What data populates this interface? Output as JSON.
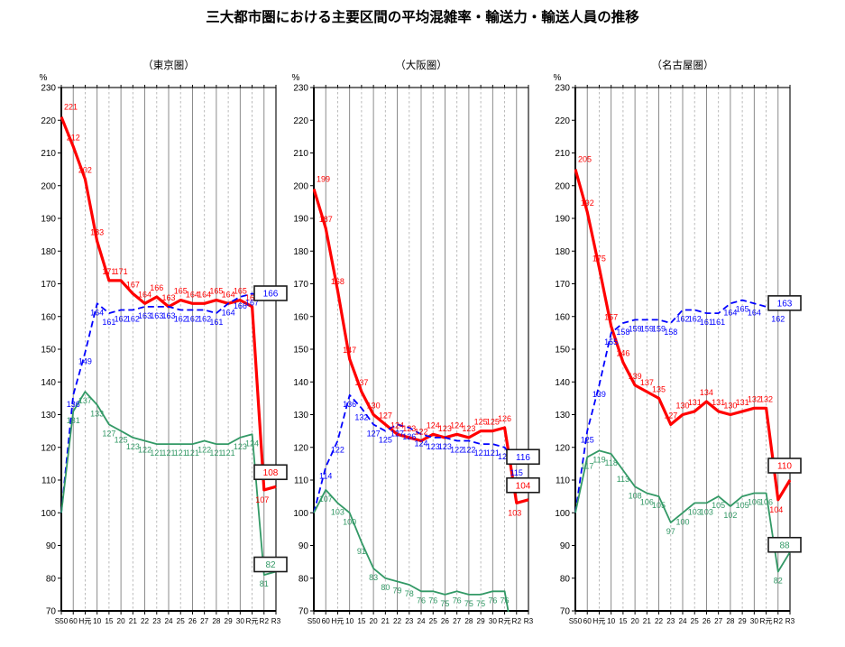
{
  "title": "三大都市圏における主要区間の平均混雑率・輸送力・輸送人員の推移",
  "chart_data": {
    "type": "line",
    "title": "三大都市圏における主要区間の平均混雑率・輸送力・輸送人員の推移",
    "y_axis": {
      "unit": "%",
      "min": 70,
      "max": 230,
      "step": 10
    },
    "x_labels": [
      "S50",
      "60",
      "H元",
      "10",
      "15",
      "20",
      "21",
      "22",
      "23",
      "24",
      "25",
      "26",
      "27",
      "28",
      "29",
      "30",
      "R元",
      "R2",
      "R3"
    ],
    "legend_position": "none",
    "grid": "vertical-only",
    "panels": [
      {
        "id": "tokyo",
        "title": "（東京圏）",
        "series": [
          {
            "id": "congestion-rate",
            "type": "solid",
            "color": "#ff0000",
            "line_width": 3.2,
            "boxed_final": true,
            "values": [
              221,
              212,
              202,
              183,
              171,
              171,
              167,
              164,
              166,
              163,
              165,
              164,
              164,
              165,
              164,
              165,
              163,
              107,
              108
            ],
            "labels": [
              "221",
              "212",
              "202",
              "183",
              "171",
              "171",
              "167",
              "164",
              "166",
              "163",
              "165",
              "164",
              "164",
              "165",
              "164",
              "165",
              "163",
              "107",
              "108"
            ]
          },
          {
            "id": "transport-capacity",
            "type": "dashed",
            "color": "#0000ff",
            "line_width": 1.8,
            "boxed_final": true,
            "values": [
              100,
              136,
              149,
              164,
              161,
              162,
              162,
              163,
              163,
              163,
              162,
              162,
              162,
              161,
              164,
              166,
              167,
              166,
              166
            ],
            "labels": [
              "",
              "136",
              "149",
              "164",
              "161",
              "162",
              "162",
              "163",
              "163",
              "163",
              "162",
              "162",
              "162",
              "161",
              "164",
              "166",
              "167",
              "",
              "166"
            ]
          },
          {
            "id": "passengers",
            "type": "solid",
            "color": "#339966",
            "line_width": 1.8,
            "boxed_final": true,
            "values": [
              100,
              131,
              137,
              133,
              127,
              125,
              123,
              122,
              121,
              121,
              121,
              121,
              122,
              121,
              121,
              123,
              124,
              81,
              82
            ],
            "labels": [
              "",
              "131",
              "137",
              "133",
              "127",
              "125",
              "123",
              "122",
              "121",
              "121",
              "121",
              "121",
              "122",
              "121",
              "121",
              "123",
              "124",
              "81",
              "82"
            ]
          }
        ]
      },
      {
        "id": "osaka",
        "title": "（大阪圏）",
        "series": [
          {
            "id": "congestion-rate",
            "type": "solid",
            "color": "#ff0000",
            "line_width": 3.2,
            "boxed_final": true,
            "values": [
              199,
              187,
              168,
              147,
              137,
              130,
              127,
              124,
              123,
              122,
              124,
              123,
              124,
              123,
              125,
              125,
              126,
              103,
              104
            ],
            "labels": [
              "199",
              "187",
              "168",
              "147",
              "137",
              "130",
              "127",
              "124",
              "123",
              "122",
              "124",
              "123",
              "124",
              "123",
              "125",
              "125",
              "126",
              "103",
              "104"
            ]
          },
          {
            "id": "transport-capacity",
            "type": "dashed",
            "color": "#0000ff",
            "line_width": 1.8,
            "boxed_final": true,
            "values": [
              100,
              114,
              122,
              136,
              132,
              127,
              125,
              127,
              126,
              124,
              123,
              123,
              122,
              122,
              121,
              121,
              120,
              115,
              116
            ],
            "labels": [
              "",
              "114",
              "122",
              "136",
              "132",
              "127",
              "125",
              "127",
              "126",
              "124",
              "123",
              "123",
              "122",
              "122",
              "121",
              "121",
              "120",
              "115",
              "116"
            ]
          },
          {
            "id": "passengers",
            "type": "solid",
            "color": "#339966",
            "line_width": 1.8,
            "boxed_final": false,
            "note": "line exits below 70% axis after R元",
            "values": [
              100,
              107,
              103,
              100,
              91,
              83,
              80,
              79,
              78,
              76,
              76,
              75,
              76,
              75,
              75,
              76,
              76,
              56,
              57
            ],
            "labels": [
              "",
              "107",
              "103",
              "100",
              "91",
              "83",
              "80",
              "79",
              "78",
              "76",
              "76",
              "75",
              "76",
              "75",
              "75",
              "76",
              "76",
              "",
              ""
            ]
          }
        ]
      },
      {
        "id": "nagoya",
        "title": "（名古屋圏）",
        "series": [
          {
            "id": "congestion-rate",
            "type": "solid",
            "color": "#ff0000",
            "line_width": 3.2,
            "boxed_final": true,
            "values": [
              205,
              192,
              175,
              157,
              146,
              139,
              137,
              135,
              127,
              130,
              131,
              134,
              131,
              130,
              131,
              132,
              132,
              104,
              110
            ],
            "labels": [
              "205",
              "192",
              "175",
              "157",
              "146",
              "139",
              "137",
              "135",
              "127",
              "130",
              "131",
              "134",
              "131",
              "130",
              "131",
              "132",
              "132",
              "104",
              "110"
            ]
          },
          {
            "id": "transport-capacity",
            "type": "dashed",
            "color": "#0000ff",
            "line_width": 1.8,
            "boxed_final": true,
            "values": [
              100,
              125,
              139,
              155,
              158,
              159,
              159,
              159,
              158,
              162,
              162,
              161,
              161,
              164,
              165,
              164,
              163,
              162,
              163
            ],
            "labels": [
              "",
              "125",
              "139",
              "155",
              "158",
              "159",
              "159",
              "159",
              "158",
              "162",
              "162",
              "161",
              "161",
              "164",
              "165",
              "164",
              "",
              "162",
              "163"
            ]
          },
          {
            "id": "passengers",
            "type": "solid",
            "color": "#339966",
            "line_width": 1.8,
            "boxed_final": true,
            "values": [
              100,
              117,
              119,
              118,
              113,
              108,
              106,
              105,
              97,
              100,
              103,
              103,
              105,
              102,
              105,
              106,
              106,
              82,
              88
            ],
            "labels": [
              "",
              "117",
              "119",
              "118",
              "113",
              "108",
              "106",
              "105",
              "97",
              "100",
              "103",
              "103",
              "105",
              "102",
              "105",
              "106",
              "106",
              "82",
              "88"
            ]
          }
        ]
      }
    ]
  }
}
